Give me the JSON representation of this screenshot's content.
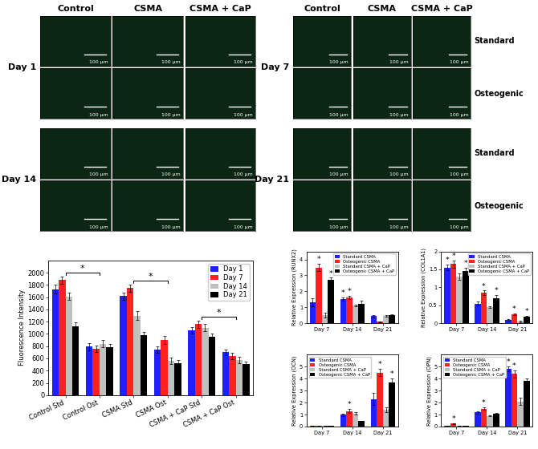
{
  "image_panels": {
    "columns": [
      "Control",
      "CSMA",
      "CSMA + CaP"
    ],
    "left_days": [
      "Day 1",
      "Day 14"
    ],
    "right_days": [
      "Day 7",
      "Day 21"
    ],
    "row_labels": [
      "Standard",
      "Osteogenic"
    ],
    "scale_bar": "100 µm"
  },
  "chart_data": [
    {
      "type": "bar",
      "y_label": "Fluorescence Intensity",
      "categories": [
        "Control Std",
        "Control Ost",
        "CSMA Std",
        "CSMA Ost",
        "CSMA + CaP Std",
        "CSMA + CaP Ost"
      ],
      "series": [
        {
          "name": "Day 1",
          "color": "#2020ff",
          "values": [
            1730,
            790,
            1620,
            740,
            1060,
            700
          ],
          "errors": [
            70,
            60,
            60,
            50,
            50,
            50
          ]
        },
        {
          "name": "Day 7",
          "color": "#ff2020",
          "values": [
            1880,
            760,
            1750,
            900,
            1160,
            640
          ],
          "errors": [
            60,
            50,
            60,
            60,
            60,
            50
          ]
        },
        {
          "name": "Day 14",
          "color": "#c0c0c0",
          "values": [
            1610,
            840,
            1300,
            560,
            1100,
            570
          ],
          "errors": [
            60,
            60,
            70,
            50,
            60,
            50
          ]
        },
        {
          "name": "Day 21",
          "color": "#000000",
          "values": [
            1120,
            780,
            980,
            520,
            950,
            510
          ],
          "errors": [
            70,
            50,
            50,
            50,
            60,
            40
          ]
        }
      ],
      "ylim": [
        0,
        2200
      ],
      "yticks": [
        0,
        200,
        400,
        600,
        800,
        1000,
        1200,
        1400,
        1600,
        1800,
        2000
      ],
      "legend": "upper right",
      "annotations": [
        {
          "text": "*",
          "between": [
            "Control Std",
            "Control Ost"
          ]
        },
        {
          "text": "*",
          "between": [
            "CSMA Std",
            "CSMA Ost"
          ]
        },
        {
          "text": "*",
          "between": [
            "CSMA + CaP Std",
            "CSMA + CaP Ost"
          ]
        }
      ]
    },
    {
      "type": "bar",
      "y_label": "Relative Expression (RUNX2)",
      "categories": [
        "Day 7",
        "Day 14",
        "Day 21"
      ],
      "series": [
        {
          "name": "Standard CSMA",
          "color": "#2020ff",
          "values": [
            1.3,
            1.5,
            0.45
          ],
          "errors": [
            0.25,
            0.1,
            0.08
          ]
        },
        {
          "name": "Osteogenic CSMA",
          "color": "#ff2020",
          "values": [
            3.5,
            1.6,
            0.1
          ],
          "errors": [
            0.25,
            0.1,
            0.02
          ]
        },
        {
          "name": "Standard CSMA + CaP",
          "color": "#c0c0c0",
          "values": [
            0.5,
            1.1,
            0.45
          ],
          "errors": [
            0.15,
            0.05,
            0.05
          ]
        },
        {
          "name": "Osteogenic CSMA + CaP",
          "color": "#000000",
          "values": [
            2.7,
            1.2,
            0.5
          ],
          "errors": [
            0.15,
            0.2,
            0.05
          ]
        }
      ],
      "ylim": [
        0,
        4.5
      ],
      "yticks": [
        0,
        1,
        2,
        3,
        4
      ],
      "legend": "upper right",
      "annotations": [
        {
          "text": "*",
          "category": "Day 7",
          "series": "Osteogenic CSMA"
        },
        {
          "text": "*",
          "category": "Day 7",
          "series": "Osteogenic CSMA + CaP"
        },
        {
          "text": "*",
          "category": "Day 14",
          "series": "Standard CSMA"
        },
        {
          "text": "*",
          "category": "Day 14",
          "series": "Osteogenic CSMA"
        }
      ]
    },
    {
      "type": "bar",
      "y_label": "Relative Expression (COL1A1)",
      "categories": [
        "Day 7",
        "Day 14",
        "Day 21"
      ],
      "series": [
        {
          "name": "Standard CSMA",
          "color": "#2020ff",
          "values": [
            1.55,
            0.55,
            0.1
          ],
          "errors": [
            0.08,
            0.05,
            0.02
          ]
        },
        {
          "name": "Osteogenic CSMA",
          "color": "#ff2020",
          "values": [
            1.65,
            0.85,
            0.25
          ],
          "errors": [
            0.1,
            0.06,
            0.03
          ]
        },
        {
          "name": "Standard CSMA + CaP",
          "color": "#c0c0c0",
          "values": [
            1.3,
            0.45,
            0.05
          ],
          "errors": [
            0.08,
            0.03,
            0.02
          ]
        },
        {
          "name": "Osteogenic CSMA + CaP",
          "color": "#000000",
          "values": [
            1.45,
            0.7,
            0.18
          ],
          "errors": [
            0.1,
            0.08,
            0.02
          ]
        }
      ],
      "ylim": [
        0,
        2
      ],
      "yticks": [
        0,
        0.5,
        1,
        1.5,
        2
      ],
      "legend": "upper right",
      "annotations": [
        {
          "text": "*",
          "category": "Day 7",
          "series": "Standard CSMA"
        },
        {
          "text": "*",
          "category": "Day 7",
          "series": "Osteogenic CSMA"
        },
        {
          "text": "*",
          "category": "Day 7",
          "series": "Osteogenic CSMA + CaP"
        },
        {
          "text": "*",
          "category": "Day 14",
          "series": "Osteogenic CSMA"
        },
        {
          "text": "*",
          "category": "Day 14",
          "series": "Osteogenic CSMA + CaP"
        },
        {
          "text": "*",
          "category": "Day 21",
          "series": "Osteogenic CSMA"
        },
        {
          "text": "*",
          "category": "Day 21",
          "series": "Osteogenic CSMA + CaP"
        }
      ]
    },
    {
      "type": "bar",
      "y_label": "Relative Expression (OCN)",
      "categories": [
        "Day 7",
        "Day 14",
        "Day 21"
      ],
      "series": [
        {
          "name": "Standard CSMA",
          "color": "#2020ff",
          "values": [
            0.05,
            1.0,
            2.3
          ],
          "errors": [
            0.01,
            0.1,
            0.5
          ]
        },
        {
          "name": "Osteogenic CSMA",
          "color": "#ff2020",
          "values": [
            0.05,
            1.3,
            4.5
          ],
          "errors": [
            0.01,
            0.15,
            0.3
          ]
        },
        {
          "name": "Standard CSMA + CaP",
          "color": "#c0c0c0",
          "values": [
            0.05,
            1.1,
            1.4
          ],
          "errors": [
            0.01,
            0.1,
            0.2
          ]
        },
        {
          "name": "Osteogenic CSMA + CaP",
          "color": "#000000",
          "values": [
            0.05,
            0.45,
            3.7
          ],
          "errors": [
            0.01,
            0.05,
            0.3
          ]
        }
      ],
      "ylim": [
        0,
        6
      ],
      "yticks": [
        0,
        1,
        2,
        3,
        4,
        5
      ],
      "legend": "upper left",
      "annotations": [
        {
          "text": "*",
          "category": "Day 14",
          "series": "Osteogenic CSMA"
        },
        {
          "text": "*",
          "category": "Day 21",
          "series": "Osteogenic CSMA"
        },
        {
          "text": "*",
          "category": "Day 21",
          "series": "Osteogenic CSMA + CaP"
        }
      ]
    },
    {
      "type": "bar",
      "y_label": "Relative Expression (OPN)",
      "categories": [
        "Day 7",
        "Day 14",
        "Day 21"
      ],
      "series": [
        {
          "name": "Standard CSMA",
          "color": "#2020ff",
          "values": [
            0.05,
            1.2,
            4.8
          ],
          "errors": [
            0.01,
            0.1,
            0.2
          ]
        },
        {
          "name": "Osteogenic CSMA",
          "color": "#ff2020",
          "values": [
            0.25,
            1.5,
            4.4
          ],
          "errors": [
            0.05,
            0.1,
            0.3
          ]
        },
        {
          "name": "Standard CSMA + CaP",
          "color": "#c0c0c0",
          "values": [
            0.05,
            0.9,
            2.1
          ],
          "errors": [
            0.01,
            0.05,
            0.3
          ]
        },
        {
          "name": "Osteogenic CSMA + CaP",
          "color": "#000000",
          "values": [
            0.05,
            1.1,
            3.8
          ],
          "errors": [
            0.01,
            0.05,
            0.2
          ]
        }
      ],
      "ylim": [
        0,
        6
      ],
      "yticks": [
        0,
        1,
        2,
        3,
        4,
        5
      ],
      "legend": "upper left",
      "annotations": [
        {
          "text": "*",
          "category": "Day 7",
          "series": "Osteogenic CSMA"
        },
        {
          "text": "*",
          "category": "Day 14",
          "series": "Osteogenic CSMA"
        },
        {
          "text": "*",
          "category": "Day 21",
          "series": "Standard CSMA"
        },
        {
          "text": "*",
          "category": "Day 21",
          "series": "Osteogenic CSMA"
        }
      ]
    }
  ]
}
